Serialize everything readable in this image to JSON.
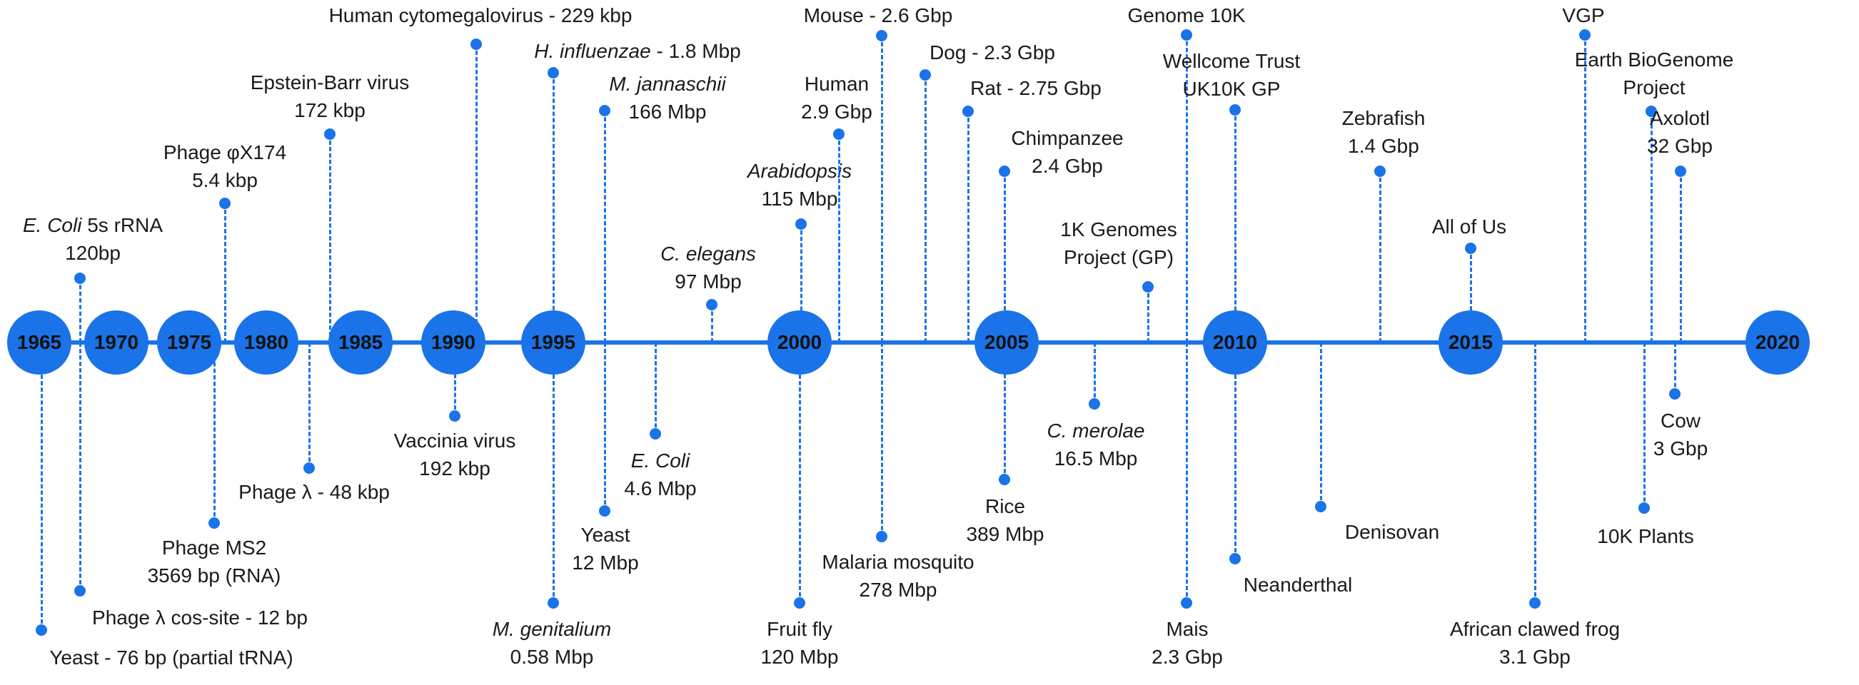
{
  "diagram": {
    "colors": {
      "accent": "#1a73e8",
      "text": "#1a1a1a",
      "background": "#ffffff"
    },
    "years": [
      "1965",
      "1970",
      "1975",
      "1980",
      "1985",
      "1990",
      "1995",
      "2000",
      "2005",
      "2010",
      "2015",
      "2020"
    ],
    "events": [
      {
        "id": "yeast-trna",
        "lines": [
          "Yeast - 76 bp (partial tRNA)"
        ]
      },
      {
        "id": "ecoli-5s",
        "lines": [
          "E. Coli 5s rRNA",
          "120bp"
        ],
        "italic": "E. Coli"
      },
      {
        "id": "phage-lambda-cos",
        "lines": [
          "Phage λ cos-site - 12 bp"
        ]
      },
      {
        "id": "phage-ms2",
        "lines": [
          "Phage MS2",
          "3569 bp (RNA)"
        ]
      },
      {
        "id": "phage-phix174",
        "lines": [
          "Phage φX174",
          "5.4 kbp"
        ]
      },
      {
        "id": "phage-lambda",
        "lines": [
          "Phage λ - 48 kbp"
        ]
      },
      {
        "id": "epstein-barr",
        "lines": [
          "Epstein-Barr virus",
          "172 kbp"
        ]
      },
      {
        "id": "vaccinia",
        "lines": [
          "Vaccinia virus",
          "192 kbp"
        ]
      },
      {
        "id": "cytomegalovirus",
        "lines": [
          "Human cytomegalovirus - 229 kbp"
        ]
      },
      {
        "id": "h-influenzae",
        "lines": [
          "H. influenzae - 1.8 Mbp"
        ],
        "italic": "H. influenzae"
      },
      {
        "id": "m-genitalium",
        "lines": [
          "M. genitalium",
          "0.58 Mbp"
        ],
        "italic": "M. genitalium"
      },
      {
        "id": "m-jannaschii",
        "lines": [
          "M. jannaschii",
          "166 Mbp"
        ],
        "italic": "M. jannaschii"
      },
      {
        "id": "yeast-genome",
        "lines": [
          "Yeast",
          "12 Mbp"
        ]
      },
      {
        "id": "e-coli",
        "lines": [
          "E. Coli",
          "4.6 Mbp"
        ],
        "italic": "E. Coli"
      },
      {
        "id": "c-elegans",
        "lines": [
          "C. elegans",
          "97 Mbp"
        ],
        "italic": "C. elegans"
      },
      {
        "id": "arabidopsis",
        "lines": [
          "Arabidopsis",
          "115 Mbp"
        ],
        "italic": "Arabidopsis"
      },
      {
        "id": "fruit-fly",
        "lines": [
          "Fruit fly",
          "120 Mbp"
        ]
      },
      {
        "id": "human",
        "lines": [
          "Human",
          "2.9 Gbp"
        ]
      },
      {
        "id": "mouse",
        "lines": [
          "Mouse - 2.6 Gbp"
        ]
      },
      {
        "id": "malaria-mosquito",
        "lines": [
          "Malaria mosquito",
          "278 Mbp"
        ]
      },
      {
        "id": "dog",
        "lines": [
          "Dog - 2.3 Gbp"
        ]
      },
      {
        "id": "rat",
        "lines": [
          "Rat - 2.75 Gbp"
        ]
      },
      {
        "id": "chimpanzee",
        "lines": [
          "Chimpanzee",
          "2.4 Gbp"
        ]
      },
      {
        "id": "rice",
        "lines": [
          "Rice",
          "389 Mbp"
        ]
      },
      {
        "id": "c-merolae",
        "lines": [
          "C. merolae",
          "16.5 Mbp"
        ],
        "italic": "C. merolae"
      },
      {
        "id": "1k-genomes",
        "lines": [
          "1K Genomes",
          "Project (GP)"
        ]
      },
      {
        "id": "genome-10k",
        "lines": [
          "Genome 10K"
        ]
      },
      {
        "id": "mais",
        "lines": [
          "Mais",
          "2.3 Gbp"
        ]
      },
      {
        "id": "uk10k",
        "lines": [
          "Wellcome Trust",
          "UK10K GP"
        ]
      },
      {
        "id": "neanderthal",
        "lines": [
          "Neanderthal"
        ]
      },
      {
        "id": "denisovan",
        "lines": [
          "Denisovan"
        ]
      },
      {
        "id": "zebrafish",
        "lines": [
          "Zebrafish",
          "1.4 Gbp"
        ]
      },
      {
        "id": "all-of-us",
        "lines": [
          "All of Us"
        ]
      },
      {
        "id": "african-clawed-frog",
        "lines": [
          "African clawed frog",
          "3.1 Gbp"
        ]
      },
      {
        "id": "vgp",
        "lines": [
          "VGP"
        ]
      },
      {
        "id": "earth-biogenome",
        "lines": [
          "Earth BioGenome",
          "Project"
        ]
      },
      {
        "id": "10k-plants",
        "lines": [
          "10K Plants"
        ]
      },
      {
        "id": "axolotl",
        "lines": [
          "Axolotl",
          "32 Gbp"
        ]
      },
      {
        "id": "cow",
        "lines": [
          "Cow",
          "3 Gbp"
        ]
      }
    ]
  }
}
